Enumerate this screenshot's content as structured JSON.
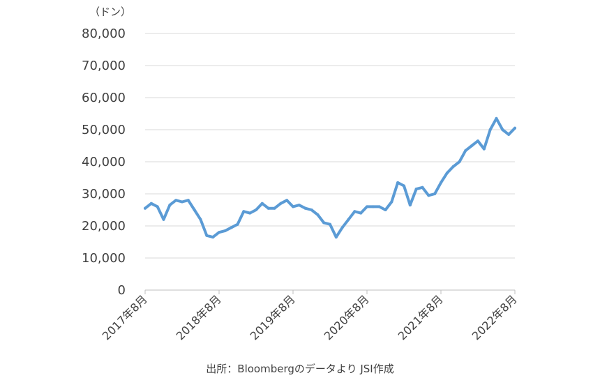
{
  "chart_data": {
    "type": "line",
    "unit_label": "（ドン）",
    "ylim": [
      0,
      80000
    ],
    "y_ticks": [
      0,
      10000,
      20000,
      30000,
      40000,
      50000,
      60000,
      70000,
      80000
    ],
    "y_tick_labels": [
      "0",
      "10,000",
      "20,000",
      "30,000",
      "40,000",
      "50,000",
      "60,000",
      "70,000",
      "80,000"
    ],
    "x_tick_labels": [
      "2017年8月",
      "2018年8月",
      "2019年8月",
      "2020年8月",
      "2021年8月",
      "2022年8月"
    ],
    "grid": true,
    "legend": "none",
    "series": [
      {
        "color": "#5b9bd5",
        "x": [
          "2017-08",
          "2017-09",
          "2017-10",
          "2017-11",
          "2017-12",
          "2018-01",
          "2018-02",
          "2018-03",
          "2018-04",
          "2018-05",
          "2018-06",
          "2018-07",
          "2018-08",
          "2018-09",
          "2018-10",
          "2018-11",
          "2018-12",
          "2019-01",
          "2019-02",
          "2019-03",
          "2019-04",
          "2019-05",
          "2019-06",
          "2019-07",
          "2019-08",
          "2019-09",
          "2019-10",
          "2019-11",
          "2019-12",
          "2020-01",
          "2020-02",
          "2020-03",
          "2020-04",
          "2020-05",
          "2020-06",
          "2020-07",
          "2020-08",
          "2020-09",
          "2020-10",
          "2020-11",
          "2020-12",
          "2021-01",
          "2021-02",
          "2021-03",
          "2021-04",
          "2021-05",
          "2021-06",
          "2021-07",
          "2021-08",
          "2021-09",
          "2021-10",
          "2021-11",
          "2021-12",
          "2022-01",
          "2022-02",
          "2022-03",
          "2022-04",
          "2022-05",
          "2022-06",
          "2022-07",
          "2022-08"
        ],
        "values": [
          25500,
          27000,
          26000,
          22000,
          26500,
          28000,
          27500,
          28000,
          25000,
          22000,
          17000,
          16500,
          18000,
          18500,
          19500,
          20500,
          24500,
          24000,
          25000,
          27000,
          25500,
          25500,
          27000,
          28000,
          26000,
          26500,
          25500,
          25000,
          23500,
          21000,
          20500,
          16500,
          19500,
          22000,
          24500,
          24000,
          26000,
          26000,
          26000,
          25000,
          27500,
          33500,
          32500,
          26500,
          31500,
          32000,
          29500,
          30000,
          33500,
          36500,
          38500,
          40000,
          43500,
          45000,
          46500,
          44000,
          50000,
          53500,
          50000,
          48500,
          50500
        ]
      }
    ]
  },
  "source_note": "出所：Bloombergのデータより JSI作成"
}
